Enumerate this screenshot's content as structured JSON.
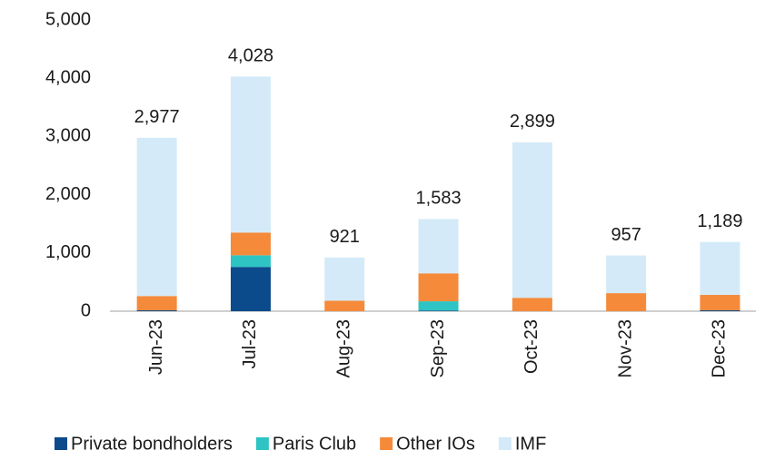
{
  "chart_data": {
    "type": "stacked_bar",
    "categories": [
      "Jun-23",
      "Jul-23",
      "Aug-23",
      "Sep-23",
      "Oct-23",
      "Nov-23",
      "Dec-23"
    ],
    "series": [
      {
        "name": "Private bondholders",
        "color": "#0b4a8b",
        "values": [
          15,
          760,
          0,
          10,
          0,
          0,
          15
        ]
      },
      {
        "name": "Paris Club",
        "color": "#2ec4c4",
        "values": [
          0,
          200,
          0,
          160,
          0,
          0,
          0
        ]
      },
      {
        "name": "Other IOs",
        "color": "#f48a3a",
        "values": [
          245,
          390,
          180,
          480,
          230,
          310,
          265
        ]
      },
      {
        "name": "IMF",
        "color": "#d4eaf8",
        "values": [
          2717,
          2678,
          741,
          933,
          2669,
          647,
          909
        ]
      }
    ],
    "totals": [
      2977,
      4028,
      921,
      1583,
      2899,
      957,
      1189
    ],
    "total_labels": [
      "2,977",
      "4,028",
      "921",
      "1,583",
      "2,899",
      "957",
      "1,189"
    ],
    "ylim": [
      0,
      5000
    ],
    "yticks": [
      0,
      {
        "value": 1000,
        "label": "1,000"
      },
      {
        "value": 2000,
        "label": "2,000"
      },
      {
        "value": 3000,
        "label": "3,000"
      },
      {
        "value": 4000,
        "label": "4,000"
      },
      {
        "value": 5000,
        "label": "5,000"
      }
    ],
    "grid": false,
    "legend": "bottom"
  }
}
